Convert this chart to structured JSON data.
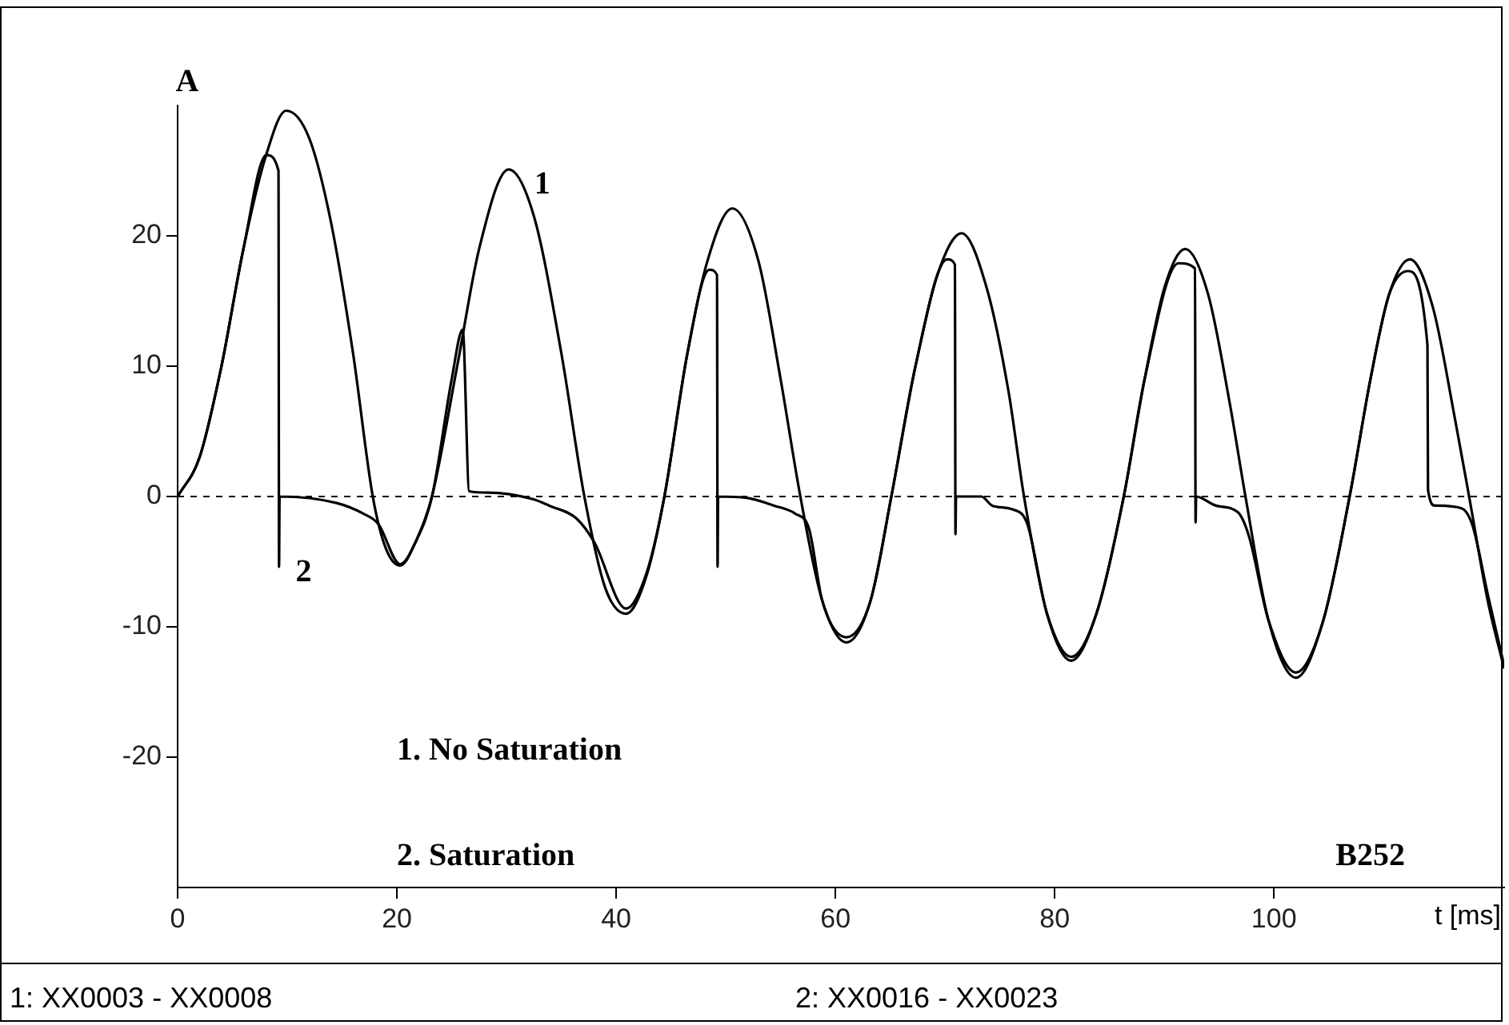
{
  "chart_data": {
    "type": "line",
    "xlabel": "t [ms]",
    "ylabel": "A",
    "xlim": [
      0,
      121
    ],
    "ylim": [
      -30,
      30
    ],
    "xticks": [
      0,
      20,
      40,
      60,
      80,
      100
    ],
    "yticks": [
      -20,
      -10,
      0,
      10,
      20
    ],
    "series": [
      {
        "name": "1",
        "color": "#000000",
        "x": [
          0,
          2,
          4,
          6,
          8,
          9.9,
          12,
          14,
          16,
          17.8,
          19,
          20.3,
          21.7,
          23.2,
          25.5,
          27.5,
          30.2,
          32.5,
          35,
          37.1,
          39,
          40.9,
          42.8,
          44.4,
          46.5,
          48.3,
          50.6,
          53,
          55,
          56.8,
          58.8,
          61,
          63.2,
          65.1,
          67.3,
          69.3,
          71.5,
          73.8,
          75.8,
          77.2,
          79.3,
          81.5,
          83.8,
          86.3,
          88.2,
          90,
          91.9,
          94,
          96,
          97.4,
          99.5,
          102,
          104.5,
          106.9,
          108.8,
          110.5,
          112.4,
          114.5,
          116.5,
          117.8,
          119.5,
          121
        ],
        "values": [
          0,
          3,
          10,
          19,
          26,
          29.6,
          27.5,
          21,
          11,
          0,
          -4,
          -5.3,
          -3.5,
          0,
          10,
          19,
          25.1,
          21.5,
          11,
          0,
          -7,
          -9,
          -6,
          0,
          11,
          18,
          22.1,
          18,
          9,
          0,
          -8,
          -11.2,
          -8,
          0,
          10,
          17,
          20.2,
          16,
          8,
          0,
          -9,
          -12.6,
          -9,
          0,
          9,
          16,
          19,
          15.5,
          7,
          0,
          -9.5,
          -13.9,
          -9.5,
          0,
          9,
          15.5,
          18.2,
          14.5,
          6,
          0,
          -8,
          -13.2
        ]
      },
      {
        "name": "2",
        "color": "#000000",
        "x": [
          0,
          2,
          4,
          6,
          8.1,
          9.2,
          9.25,
          9.3,
          14.5,
          16.9,
          18.3,
          20.3,
          21.7,
          23.2,
          25,
          26,
          26.6,
          28.3,
          32.4,
          33.9,
          36.4,
          38,
          40.9,
          42.8,
          44.4,
          46.5,
          48.5,
          49.2,
          49.25,
          49.3,
          51.9,
          54.4,
          56.3,
          57.6,
          58.8,
          61,
          63.2,
          65.1,
          67.3,
          70.2,
          70.9,
          70.95,
          71,
          73.3,
          74.3,
          76.2,
          77.5,
          79.3,
          81.5,
          83.8,
          86.3,
          88.2,
          91.3,
          92.8,
          92.85,
          92.9,
          94.7,
          96.7,
          97.7,
          99.5,
          102,
          104.5,
          106.9,
          108.8,
          110.5,
          112.2,
          114,
          114.05,
          114.7,
          117.1,
          118.1,
          119.5,
          121
        ],
        "values": [
          0,
          3,
          10,
          19,
          26.2,
          25,
          -5.4,
          0,
          -0.5,
          -1.3,
          -2.1,
          -5.2,
          -3.5,
          0,
          9,
          12.8,
          0.4,
          0.3,
          -0.2,
          -0.7,
          -1.7,
          -3.5,
          -8.6,
          -5.8,
          0,
          11,
          17.4,
          17,
          -5.4,
          0,
          -0.1,
          -0.7,
          -1.3,
          -2.5,
          -8,
          -10.8,
          -8,
          0,
          10,
          18.2,
          17.8,
          -2.9,
          0,
          0,
          -0.7,
          -1,
          -2.1,
          -9,
          -12.3,
          -9,
          0,
          9,
          17.9,
          17.5,
          -2,
          0,
          -0.7,
          -1.2,
          -3,
          -9.5,
          -13.5,
          -9.5,
          0,
          9,
          15.5,
          17.3,
          11.6,
          0.5,
          -0.7,
          -0.9,
          -2.2,
          -7.5,
          -13
        ]
      }
    ],
    "ref_lines": [
      {
        "axis": "y",
        "value": 0,
        "line_style": "dashed",
        "color": "#000000"
      }
    ],
    "annotations": [
      "1. No Saturation",
      "2. Saturation",
      "B252",
      "1: XX0003 - XX0008",
      "2: XX0016 - XX0023"
    ]
  }
}
